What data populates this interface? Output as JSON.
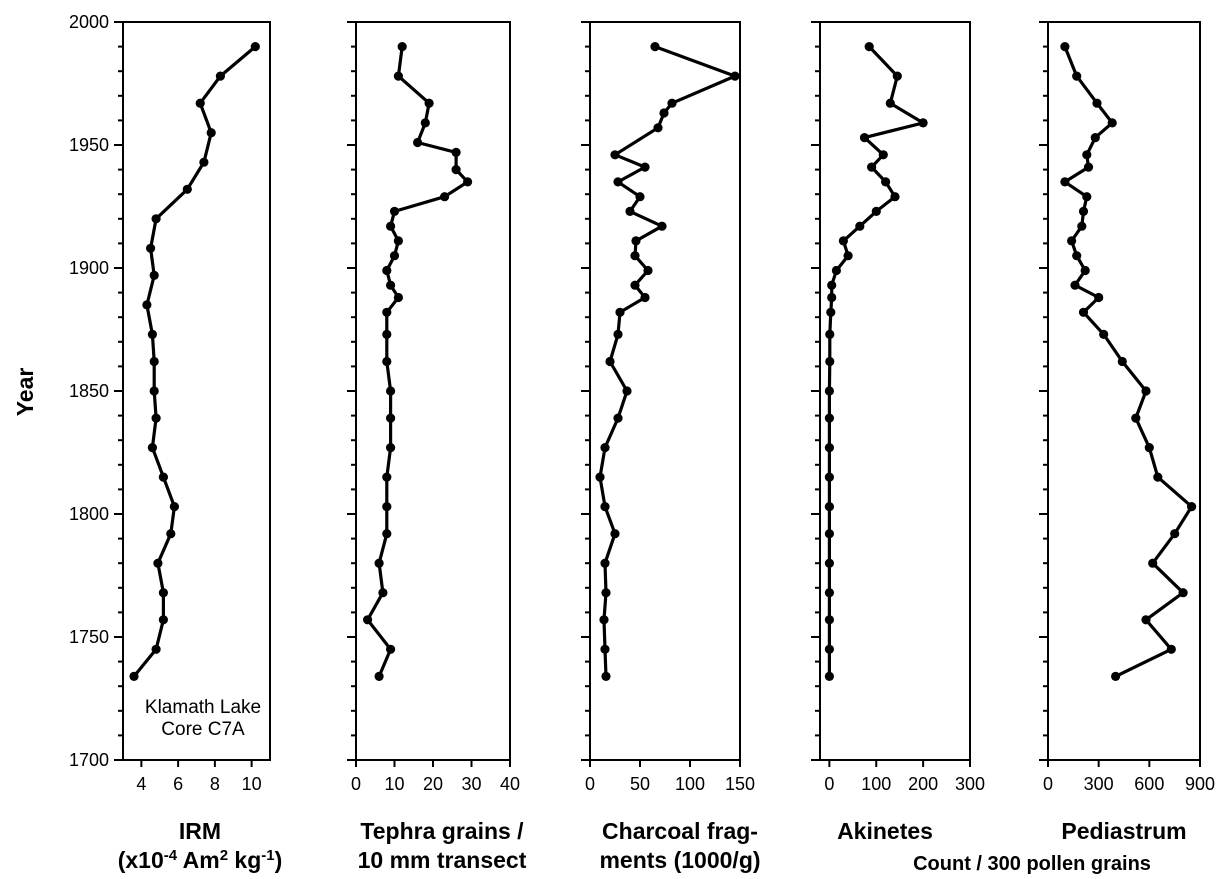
{
  "chart_data": {
    "type": "line",
    "shared_y_axis": {
      "label": "Year",
      "ylim": [
        1700,
        2000
      ],
      "ticks": [
        "1700",
        "1750",
        "1800",
        "1850",
        "1900",
        "1950",
        "2000"
      ]
    },
    "footer_caption": "Count / 300 pollen grains",
    "panels": [
      {
        "xlabel_lines": [
          "IRM",
          "(x10",
          "-4",
          " Am",
          "2",
          " kg",
          "-1",
          ")"
        ],
        "xlim": [
          3,
          11
        ],
        "xticks": [
          "4",
          "6",
          "8",
          "10"
        ],
        "annotation": [
          "Klamath Lake",
          "Core C7A"
        ],
        "points": [
          [
            10.2,
            1990
          ],
          [
            8.3,
            1978
          ],
          [
            7.2,
            1967
          ],
          [
            7.8,
            1955
          ],
          [
            7.4,
            1943
          ],
          [
            6.5,
            1932
          ],
          [
            4.8,
            1920
          ],
          [
            4.5,
            1908
          ],
          [
            4.7,
            1897
          ],
          [
            4.3,
            1885
          ],
          [
            4.6,
            1873
          ],
          [
            4.7,
            1862
          ],
          [
            4.7,
            1850
          ],
          [
            4.8,
            1839
          ],
          [
            4.6,
            1827
          ],
          [
            5.2,
            1815
          ],
          [
            5.8,
            1803
          ],
          [
            5.6,
            1792
          ],
          [
            4.9,
            1780
          ],
          [
            5.2,
            1768
          ],
          [
            5.2,
            1757
          ],
          [
            4.8,
            1745
          ],
          [
            3.6,
            1734
          ]
        ]
      },
      {
        "xlabel_lines": [
          "Tephra grains /",
          "10 mm transect"
        ],
        "xlim": [
          0,
          40
        ],
        "xticks": [
          "0",
          "10",
          "20",
          "30",
          "40"
        ],
        "points": [
          [
            12,
            1990
          ],
          [
            11,
            1978
          ],
          [
            19,
            1967
          ],
          [
            18,
            1959
          ],
          [
            16,
            1951
          ],
          [
            26,
            1947
          ],
          [
            26,
            1940
          ],
          [
            29,
            1935
          ],
          [
            23,
            1929
          ],
          [
            10,
            1923
          ],
          [
            9,
            1917
          ],
          [
            11,
            1911
          ],
          [
            10,
            1905
          ],
          [
            8,
            1899
          ],
          [
            9,
            1893
          ],
          [
            11,
            1888
          ],
          [
            8,
            1882
          ],
          [
            8,
            1873
          ],
          [
            8,
            1862
          ],
          [
            9,
            1850
          ],
          [
            9,
            1839
          ],
          [
            9,
            1827
          ],
          [
            8,
            1815
          ],
          [
            8,
            1803
          ],
          [
            8,
            1792
          ],
          [
            6,
            1780
          ],
          [
            7,
            1768
          ],
          [
            3,
            1757
          ],
          [
            9,
            1745
          ],
          [
            6,
            1734
          ]
        ]
      },
      {
        "xlabel_lines": [
          "Charcoal frag-",
          "ments (1000/g)"
        ],
        "xlim": [
          0,
          150
        ],
        "xticks": [
          "0",
          "50",
          "100",
          "150"
        ],
        "points": [
          [
            65,
            1990
          ],
          [
            145,
            1978
          ],
          [
            82,
            1967
          ],
          [
            74,
            1963
          ],
          [
            68,
            1957
          ],
          [
            25,
            1946
          ],
          [
            55,
            1941
          ],
          [
            28,
            1935
          ],
          [
            50,
            1929
          ],
          [
            40,
            1923
          ],
          [
            72,
            1917
          ],
          [
            46,
            1911
          ],
          [
            45,
            1905
          ],
          [
            58,
            1899
          ],
          [
            45,
            1893
          ],
          [
            55,
            1888
          ],
          [
            30,
            1882
          ],
          [
            28,
            1873
          ],
          [
            20,
            1862
          ],
          [
            37,
            1850
          ],
          [
            28,
            1839
          ],
          [
            15,
            1827
          ],
          [
            10,
            1815
          ],
          [
            15,
            1803
          ],
          [
            25,
            1792
          ],
          [
            15,
            1780
          ],
          [
            16,
            1768
          ],
          [
            14,
            1757
          ],
          [
            15,
            1745
          ],
          [
            16,
            1734
          ]
        ]
      },
      {
        "xlabel_lines": [
          "Akinetes"
        ],
        "xlim": [
          -20,
          300
        ],
        "xticks": [
          "0",
          "100",
          "200",
          "300"
        ],
        "points": [
          [
            85,
            1990
          ],
          [
            145,
            1978
          ],
          [
            130,
            1967
          ],
          [
            200,
            1959
          ],
          [
            75,
            1953
          ],
          [
            115,
            1946
          ],
          [
            90,
            1941
          ],
          [
            120,
            1935
          ],
          [
            140,
            1929
          ],
          [
            100,
            1923
          ],
          [
            65,
            1917
          ],
          [
            30,
            1911
          ],
          [
            40,
            1905
          ],
          [
            15,
            1899
          ],
          [
            5,
            1893
          ],
          [
            5,
            1888
          ],
          [
            3,
            1882
          ],
          [
            1,
            1873
          ],
          [
            1,
            1862
          ],
          [
            0,
            1850
          ],
          [
            0,
            1839
          ],
          [
            0,
            1827
          ],
          [
            0,
            1815
          ],
          [
            0,
            1803
          ],
          [
            0,
            1792
          ],
          [
            0,
            1780
          ],
          [
            0,
            1768
          ],
          [
            0,
            1757
          ],
          [
            0,
            1745
          ],
          [
            0,
            1734
          ]
        ]
      },
      {
        "xlabel_lines": [
          "Pediastrum"
        ],
        "xlim": [
          0,
          900
        ],
        "xticks": [
          "0",
          "300",
          "600",
          "900"
        ],
        "points": [
          [
            100,
            1990
          ],
          [
            170,
            1978
          ],
          [
            290,
            1967
          ],
          [
            380,
            1959
          ],
          [
            280,
            1953
          ],
          [
            230,
            1946
          ],
          [
            240,
            1941
          ],
          [
            100,
            1935
          ],
          [
            230,
            1929
          ],
          [
            210,
            1923
          ],
          [
            200,
            1917
          ],
          [
            140,
            1911
          ],
          [
            170,
            1905
          ],
          [
            220,
            1899
          ],
          [
            160,
            1893
          ],
          [
            300,
            1888
          ],
          [
            210,
            1882
          ],
          [
            330,
            1873
          ],
          [
            440,
            1862
          ],
          [
            580,
            1850
          ],
          [
            520,
            1839
          ],
          [
            600,
            1827
          ],
          [
            650,
            1815
          ],
          [
            850,
            1803
          ],
          [
            750,
            1792
          ],
          [
            620,
            1780
          ],
          [
            800,
            1768
          ],
          [
            580,
            1757
          ],
          [
            730,
            1745
          ],
          [
            400,
            1734
          ]
        ]
      }
    ]
  }
}
